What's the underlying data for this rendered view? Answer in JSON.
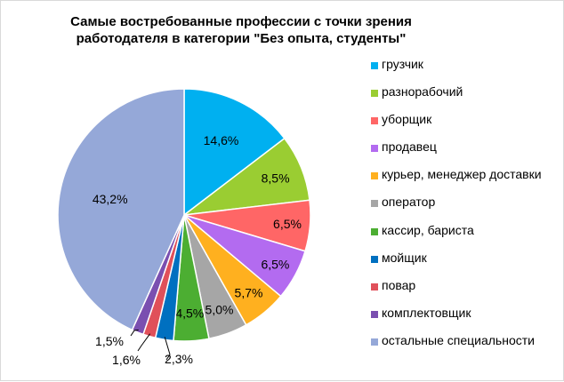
{
  "chart_data": {
    "type": "pie",
    "title": "Самые востребованные профессии с точки зрения работодателя в категории \"Без опыта, студенты\"",
    "title_lines": [
      "Самые востребованные профессии с точки зрения",
      "работодателя в категории \"Без опыта, студенты\""
    ],
    "legend_position": "right",
    "slices": [
      {
        "label": "грузчик",
        "value": 14.6,
        "display": "14,6%",
        "color": "#00b0f0"
      },
      {
        "label": "разнорабочий",
        "value": 8.5,
        "display": "8,5%",
        "color": "#9acd32"
      },
      {
        "label": "уборщик",
        "value": 6.5,
        "display": "6,5%",
        "color": "#ff6666"
      },
      {
        "label": "продавец",
        "value": 6.5,
        "display": "6,5%",
        "color": "#b36bf0"
      },
      {
        "label": "курьер, менеджер доставки",
        "value": 5.7,
        "display": "5,7%",
        "color": "#ffb01f"
      },
      {
        "label": "оператор",
        "value": 5.0,
        "display": "5,0%",
        "color": "#a6a6a6"
      },
      {
        "label": "кассир, бариста",
        "value": 4.5,
        "display": "4,5%",
        "color": "#4cae32"
      },
      {
        "label": "мойщик",
        "value": 2.3,
        "display": "2,3%",
        "color": "#0070c0"
      },
      {
        "label": "повар",
        "value": 1.6,
        "display": "1,6%",
        "color": "#e0505a"
      },
      {
        "label": "комплектовщик",
        "value": 1.5,
        "display": "1,5%",
        "color": "#7a4fb0"
      },
      {
        "label": "остальные специальности",
        "value": 43.2,
        "display": "43,2%",
        "color": "#95a8d8"
      }
    ]
  }
}
